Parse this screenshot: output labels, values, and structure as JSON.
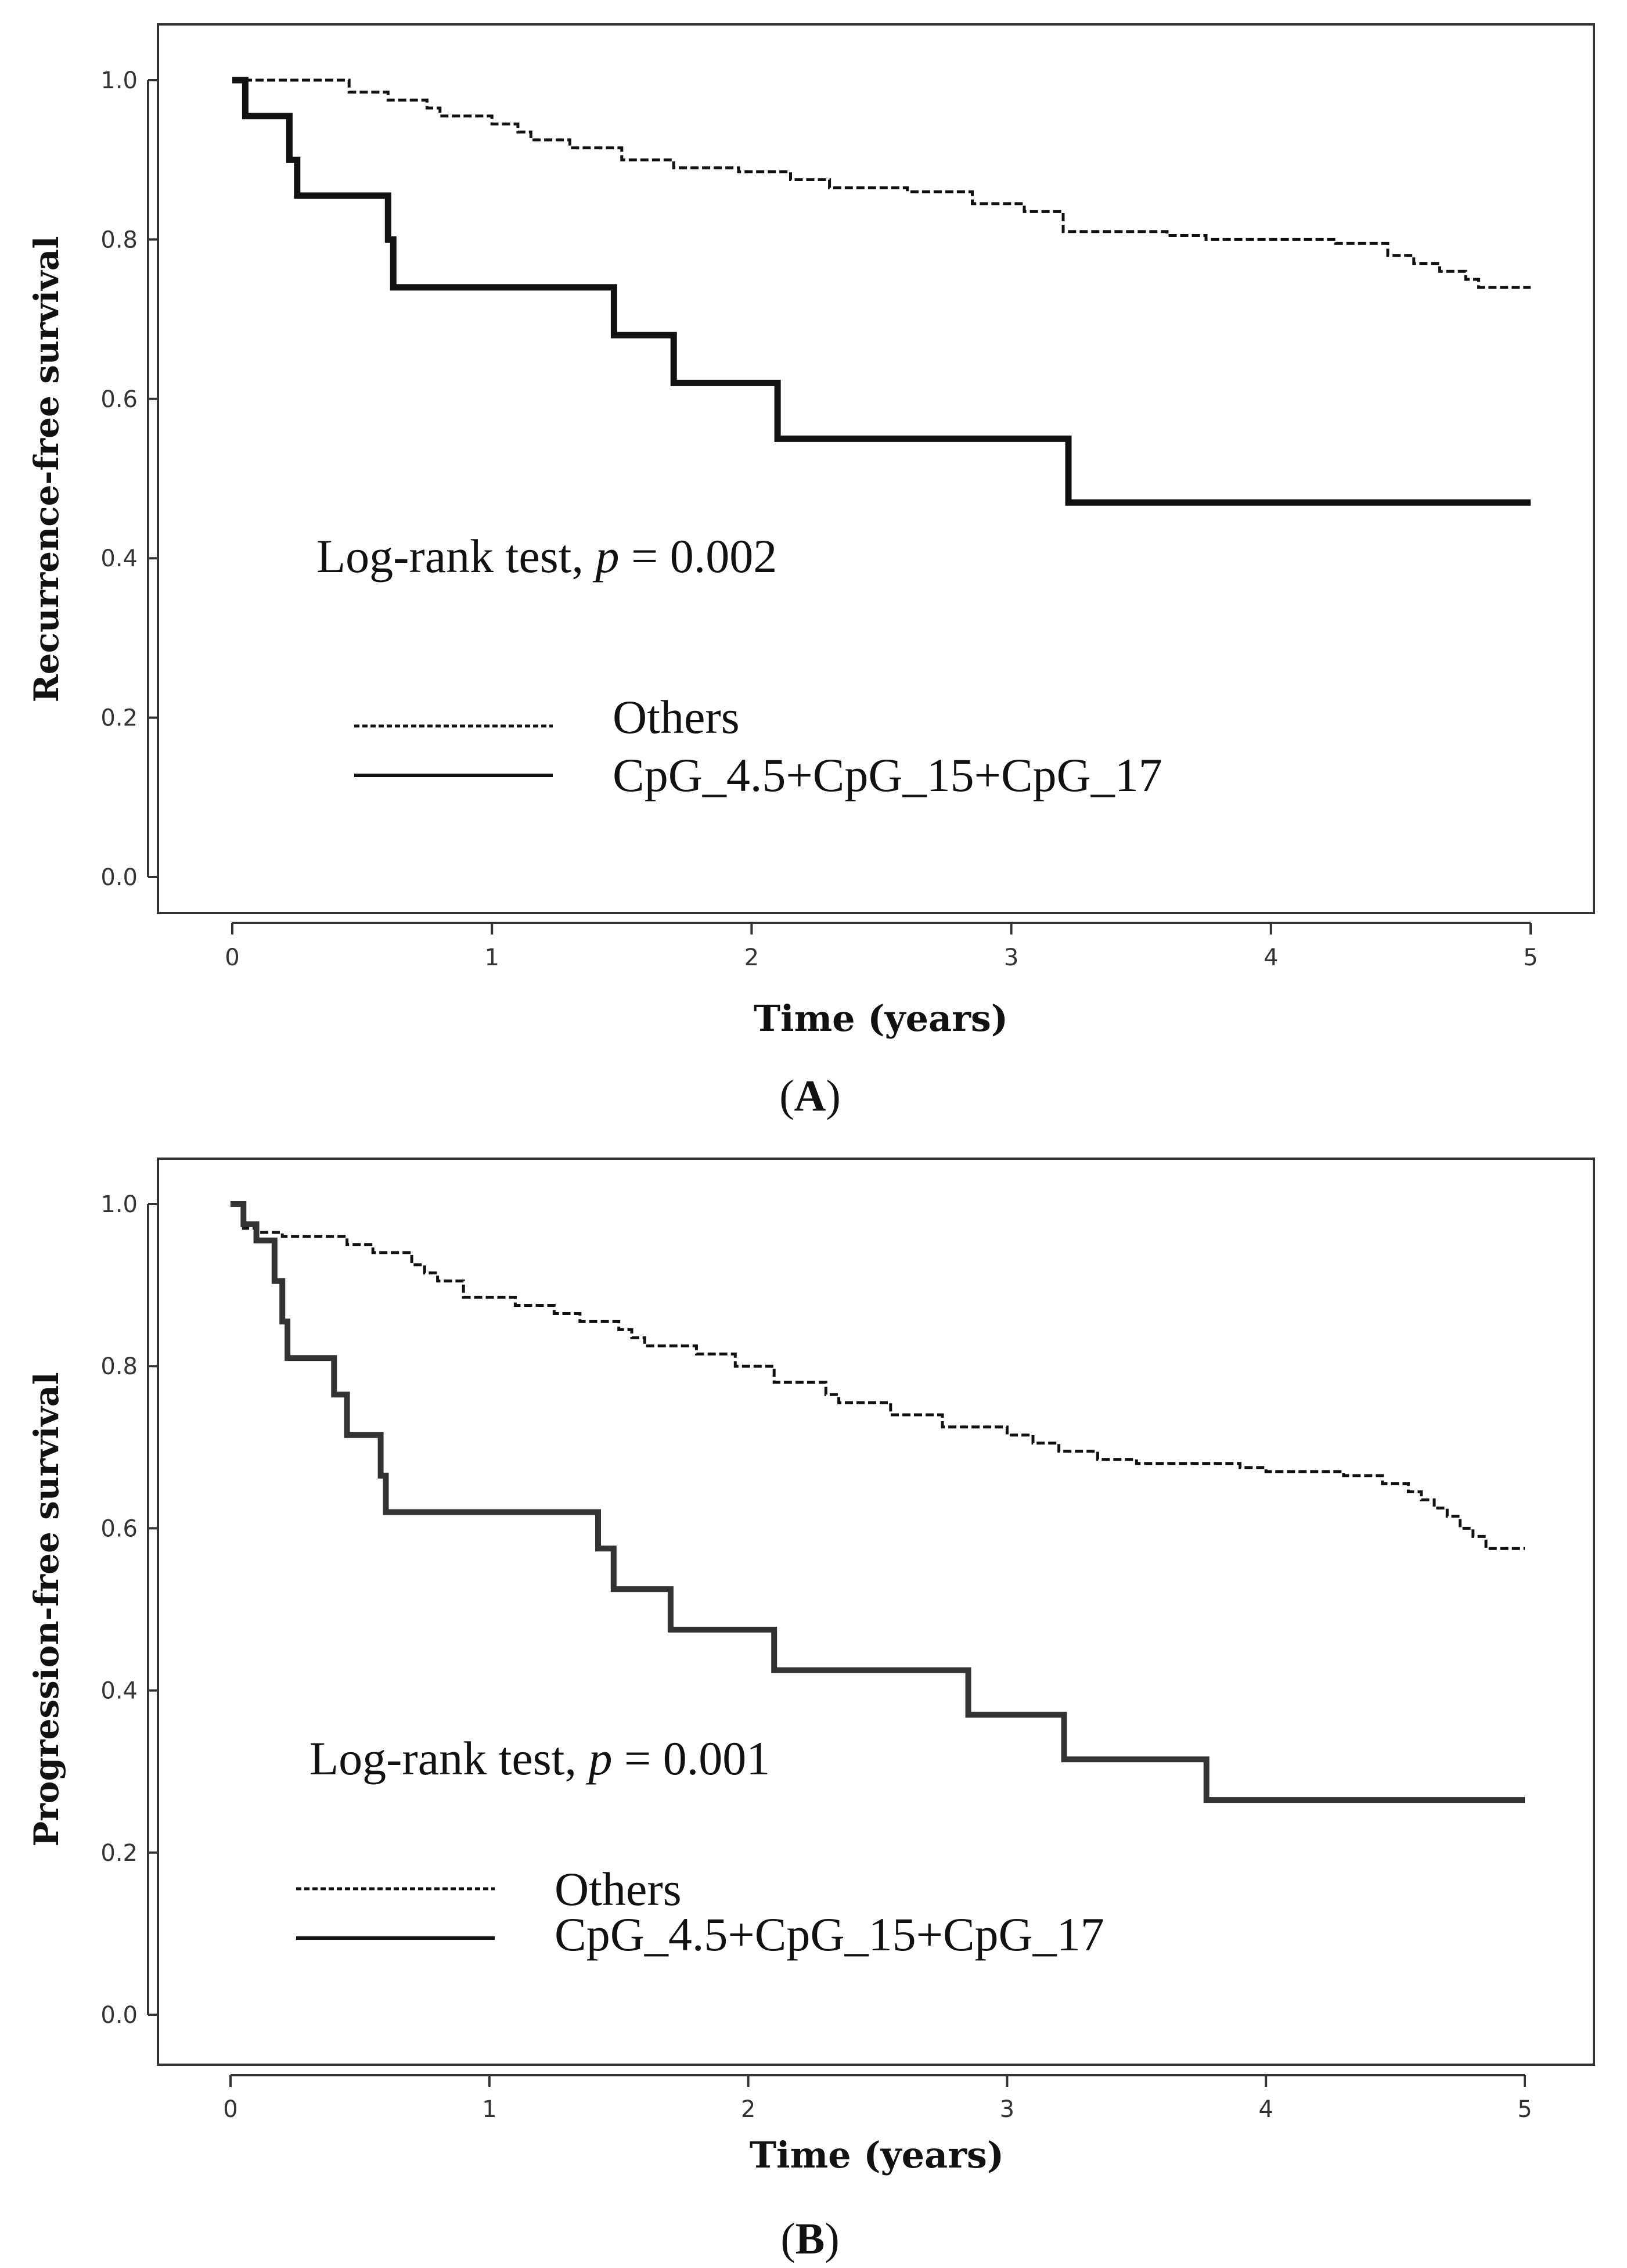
{
  "chart_data": [
    {
      "type": "line",
      "title": "",
      "caption_open": "(",
      "caption_letter": "A",
      "caption_close": ")",
      "xlabel": "Time (years)",
      "ylabel": "Recurrence-free survival",
      "xlim": [
        -0.3,
        5.3
      ],
      "ylim": [
        -0.05,
        1.05
      ],
      "xticks": [
        0,
        1,
        2,
        3,
        4,
        5
      ],
      "xtick_labels": [
        "0",
        "1",
        "2",
        "3",
        "4",
        "5"
      ],
      "yticks": [
        0.0,
        0.2,
        0.4,
        0.6,
        0.8,
        1.0
      ],
      "ytick_labels": [
        "0.0",
        "0.2",
        "0.4",
        "0.6",
        "0.8",
        "1.0"
      ],
      "grid": false,
      "annotation": {
        "prefix": "Log-rank test, ",
        "p": "p",
        "suffix": " = 0.002"
      },
      "legend_position": "lower-left",
      "series": [
        {
          "name": "Others",
          "style": "dashed",
          "color": "#111111",
          "x": [
            0,
            0.45,
            0.6,
            0.75,
            0.8,
            1.0,
            1.1,
            1.15,
            1.3,
            1.5,
            1.7,
            1.95,
            2.15,
            2.3,
            2.6,
            2.85,
            3.05,
            3.2,
            3.6,
            3.75,
            4.25,
            4.45,
            4.55,
            4.65,
            4.75,
            4.8,
            5.0
          ],
          "y": [
            1.0,
            0.985,
            0.975,
            0.965,
            0.955,
            0.945,
            0.935,
            0.925,
            0.915,
            0.9,
            0.89,
            0.885,
            0.875,
            0.865,
            0.86,
            0.845,
            0.835,
            0.81,
            0.805,
            0.8,
            0.795,
            0.78,
            0.77,
            0.76,
            0.75,
            0.74,
            0.74
          ]
        },
        {
          "name": "CpG_4.5+CpG_15+CpG_17",
          "style": "solid",
          "color": "#111111",
          "x": [
            0,
            0.05,
            0.22,
            0.25,
            0.6,
            0.62,
            1.47,
            1.7,
            2.1,
            3.22,
            5.0
          ],
          "y": [
            1.0,
            0.955,
            0.9,
            0.855,
            0.8,
            0.74,
            0.68,
            0.62,
            0.55,
            0.47,
            0.47
          ]
        }
      ]
    },
    {
      "type": "line",
      "title": "",
      "caption_open": "(",
      "caption_letter": "B",
      "caption_close": ")",
      "xlabel": "Time (years)",
      "ylabel": "Progression-free survival",
      "xlim": [
        -0.3,
        5.3
      ],
      "ylim": [
        -0.05,
        1.05
      ],
      "xticks": [
        0,
        1,
        2,
        3,
        4,
        5
      ],
      "xtick_labels": [
        "0",
        "1",
        "2",
        "3",
        "4",
        "5"
      ],
      "yticks": [
        0.0,
        0.2,
        0.4,
        0.6,
        0.8,
        1.0
      ],
      "ytick_labels": [
        "0.0",
        "0.2",
        "0.4",
        "0.6",
        "0.8",
        "1.0"
      ],
      "grid": false,
      "annotation": {
        "prefix": "Log-rank test, ",
        "p": "p",
        "suffix": " = 0.001"
      },
      "legend_position": "lower-left",
      "series": [
        {
          "name": "Others",
          "style": "dashed",
          "color": "#111111",
          "x": [
            0,
            0.05,
            0.1,
            0.2,
            0.45,
            0.55,
            0.7,
            0.75,
            0.8,
            0.9,
            1.1,
            1.25,
            1.35,
            1.5,
            1.55,
            1.6,
            1.8,
            1.95,
            2.1,
            2.3,
            2.35,
            2.55,
            2.75,
            3.0,
            3.1,
            3.2,
            3.35,
            3.5,
            3.9,
            4.0,
            4.3,
            4.45,
            4.55,
            4.6,
            4.65,
            4.7,
            4.75,
            4.8,
            4.85,
            5.0
          ],
          "y": [
            1.0,
            0.97,
            0.965,
            0.96,
            0.95,
            0.94,
            0.925,
            0.915,
            0.905,
            0.885,
            0.875,
            0.865,
            0.855,
            0.845,
            0.835,
            0.825,
            0.815,
            0.8,
            0.78,
            0.765,
            0.755,
            0.74,
            0.725,
            0.715,
            0.705,
            0.695,
            0.685,
            0.68,
            0.675,
            0.67,
            0.665,
            0.655,
            0.645,
            0.635,
            0.625,
            0.615,
            0.6,
            0.59,
            0.575,
            0.575
          ]
        },
        {
          "name": "CpG_4.5+CpG_15+CpG_17",
          "style": "solid",
          "color": "#333333",
          "x": [
            0,
            0.05,
            0.1,
            0.17,
            0.2,
            0.22,
            0.4,
            0.45,
            0.58,
            0.6,
            1.42,
            1.48,
            1.7,
            2.1,
            2.85,
            3.22,
            3.77,
            5.0
          ],
          "y": [
            1.0,
            0.975,
            0.955,
            0.905,
            0.855,
            0.81,
            0.765,
            0.715,
            0.665,
            0.62,
            0.575,
            0.525,
            0.475,
            0.425,
            0.37,
            0.315,
            0.265,
            0.265
          ]
        }
      ]
    }
  ]
}
